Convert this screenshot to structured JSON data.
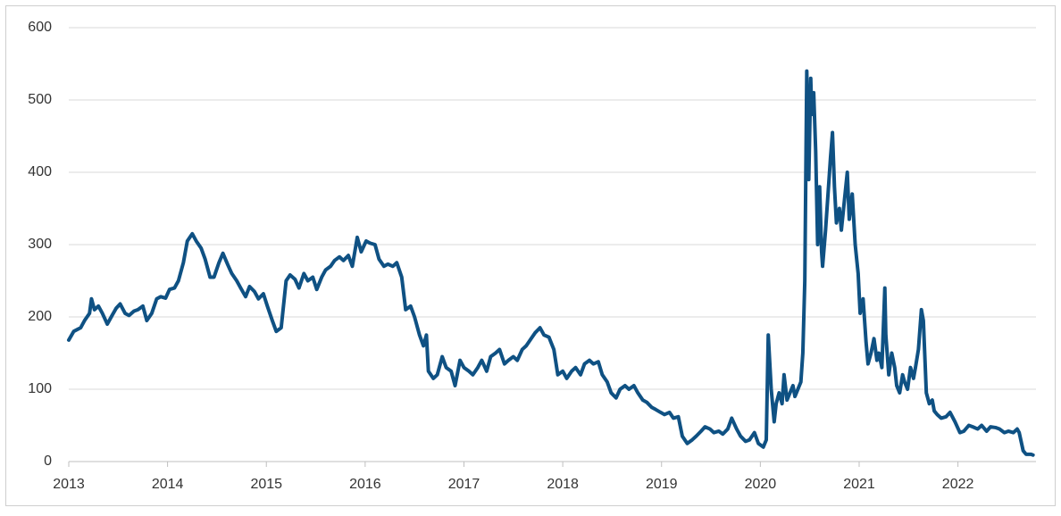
{
  "chart_data": {
    "type": "line",
    "color": "#0f5183",
    "grid": true,
    "xlim": [
      2013,
      2022.79
    ],
    "ylim": [
      0,
      600
    ],
    "xticks": [
      2013,
      2014,
      2015,
      2016,
      2017,
      2018,
      2019,
      2020,
      2021,
      2022
    ],
    "yticks": [
      0,
      100,
      200,
      300,
      400,
      500,
      600
    ],
    "x": [
      2013.0,
      2013.05,
      2013.12,
      2013.16,
      2013.21,
      2013.23,
      2013.26,
      2013.3,
      2013.34,
      2013.39,
      2013.43,
      2013.48,
      2013.52,
      2013.57,
      2013.61,
      2013.66,
      2013.7,
      2013.75,
      2013.79,
      2013.84,
      2013.89,
      2013.93,
      2013.98,
      2014.02,
      2014.07,
      2014.11,
      2014.16,
      2014.2,
      2014.25,
      2014.29,
      2014.34,
      2014.38,
      2014.43,
      2014.47,
      2014.52,
      2014.56,
      2014.61,
      2014.65,
      2014.7,
      2014.74,
      2014.79,
      2014.83,
      2014.88,
      2014.92,
      2014.97,
      2015.01,
      2015.06,
      2015.1,
      2015.15,
      2015.2,
      2015.24,
      2015.29,
      2015.33,
      2015.38,
      2015.42,
      2015.47,
      2015.51,
      2015.56,
      2015.6,
      2015.65,
      2015.69,
      2015.74,
      2015.78,
      2015.83,
      2015.87,
      2015.92,
      2015.96,
      2016.01,
      2016.05,
      2016.1,
      2016.14,
      2016.19,
      2016.23,
      2016.28,
      2016.32,
      2016.37,
      2016.41,
      2016.46,
      2016.5,
      2016.55,
      2016.59,
      2016.62,
      2016.64,
      2016.69,
      2016.73,
      2016.78,
      2016.82,
      2016.87,
      2016.91,
      2016.96,
      2017.0,
      2017.05,
      2017.09,
      2017.14,
      2017.18,
      2017.23,
      2017.27,
      2017.32,
      2017.36,
      2017.41,
      2017.45,
      2017.5,
      2017.54,
      2017.59,
      2017.63,
      2017.68,
      2017.72,
      2017.77,
      2017.81,
      2017.86,
      2017.91,
      2017.95,
      2018.0,
      2018.04,
      2018.09,
      2018.13,
      2018.18,
      2018.22,
      2018.27,
      2018.31,
      2018.36,
      2018.4,
      2018.45,
      2018.49,
      2018.54,
      2018.58,
      2018.63,
      2018.67,
      2018.72,
      2018.76,
      2018.81,
      2018.85,
      2018.9,
      2018.94,
      2018.99,
      2019.03,
      2019.08,
      2019.12,
      2019.17,
      2019.21,
      2019.26,
      2019.31,
      2019.35,
      2019.4,
      2019.44,
      2019.49,
      2019.53,
      2019.58,
      2019.62,
      2019.67,
      2019.71,
      2019.76,
      2019.8,
      2019.85,
      2019.89,
      2019.94,
      2019.98,
      2020.03,
      2020.06,
      2020.08,
      2020.11,
      2020.14,
      2020.16,
      2020.19,
      2020.22,
      2020.24,
      2020.27,
      2020.3,
      2020.33,
      2020.35,
      2020.38,
      2020.41,
      2020.43,
      2020.45,
      2020.47,
      2020.49,
      2020.51,
      2020.52,
      2020.54,
      2020.56,
      2020.58,
      2020.6,
      2020.62,
      2020.63,
      2020.66,
      2020.69,
      2020.71,
      2020.73,
      2020.75,
      2020.77,
      2020.8,
      2020.82,
      2020.85,
      2020.88,
      2020.9,
      2020.93,
      2020.96,
      2020.99,
      2021.01,
      2021.04,
      2021.07,
      2021.09,
      2021.12,
      2021.15,
      2021.18,
      2021.2,
      2021.23,
      2021.26,
      2021.27,
      2021.3,
      2021.33,
      2021.36,
      2021.38,
      2021.41,
      2021.44,
      2021.46,
      2021.49,
      2021.52,
      2021.55,
      2021.57,
      2021.6,
      2021.63,
      2021.65,
      2021.68,
      2021.71,
      2021.74,
      2021.76,
      2021.79,
      2021.83,
      2021.88,
      2021.92,
      2021.97,
      2022.02,
      2022.06,
      2022.11,
      2022.15,
      2022.2,
      2022.24,
      2022.29,
      2022.33,
      2022.38,
      2022.42,
      2022.47,
      2022.51,
      2022.56,
      2022.6,
      2022.62,
      2022.66,
      2022.69,
      2022.74,
      2022.76
    ],
    "values": [
      168,
      180,
      185,
      195,
      205,
      225,
      210,
      215,
      205,
      190,
      200,
      212,
      218,
      205,
      202,
      208,
      210,
      215,
      195,
      205,
      225,
      228,
      226,
      238,
      240,
      250,
      275,
      305,
      315,
      305,
      295,
      280,
      255,
      255,
      275,
      288,
      272,
      260,
      250,
      240,
      228,
      242,
      235,
      225,
      232,
      215,
      195,
      180,
      185,
      250,
      258,
      252,
      240,
      260,
      250,
      255,
      238,
      255,
      265,
      270,
      278,
      283,
      278,
      285,
      270,
      310,
      290,
      305,
      302,
      300,
      280,
      270,
      273,
      270,
      275,
      255,
      210,
      215,
      200,
      175,
      160,
      175,
      125,
      115,
      120,
      145,
      130,
      125,
      105,
      140,
      130,
      125,
      120,
      130,
      140,
      125,
      145,
      150,
      155,
      135,
      140,
      145,
      140,
      155,
      160,
      170,
      178,
      185,
      175,
      172,
      155,
      120,
      125,
      115,
      125,
      130,
      120,
      135,
      140,
      135,
      138,
      120,
      110,
      95,
      88,
      100,
      105,
      100,
      105,
      95,
      85,
      82,
      75,
      72,
      68,
      65,
      68,
      60,
      62,
      35,
      25,
      30,
      35,
      42,
      48,
      45,
      40,
      42,
      38,
      45,
      60,
      45,
      35,
      28,
      30,
      40,
      25,
      20,
      30,
      175,
      100,
      55,
      80,
      95,
      80,
      120,
      85,
      95,
      105,
      90,
      100,
      110,
      150,
      250,
      540,
      390,
      530,
      480,
      510,
      430,
      300,
      380,
      290,
      270,
      320,
      380,
      420,
      455,
      380,
      330,
      350,
      320,
      360,
      400,
      335,
      370,
      300,
      260,
      205,
      225,
      165,
      135,
      150,
      170,
      140,
      150,
      130,
      240,
      175,
      120,
      150,
      130,
      105,
      95,
      120,
      110,
      100,
      130,
      115,
      130,
      155,
      210,
      195,
      95,
      80,
      85,
      70,
      65,
      60,
      62,
      68,
      55,
      40,
      42,
      50,
      48,
      45,
      50,
      42,
      48,
      47,
      45,
      40,
      42,
      40,
      45,
      40,
      15,
      10,
      10,
      9
    ]
  }
}
